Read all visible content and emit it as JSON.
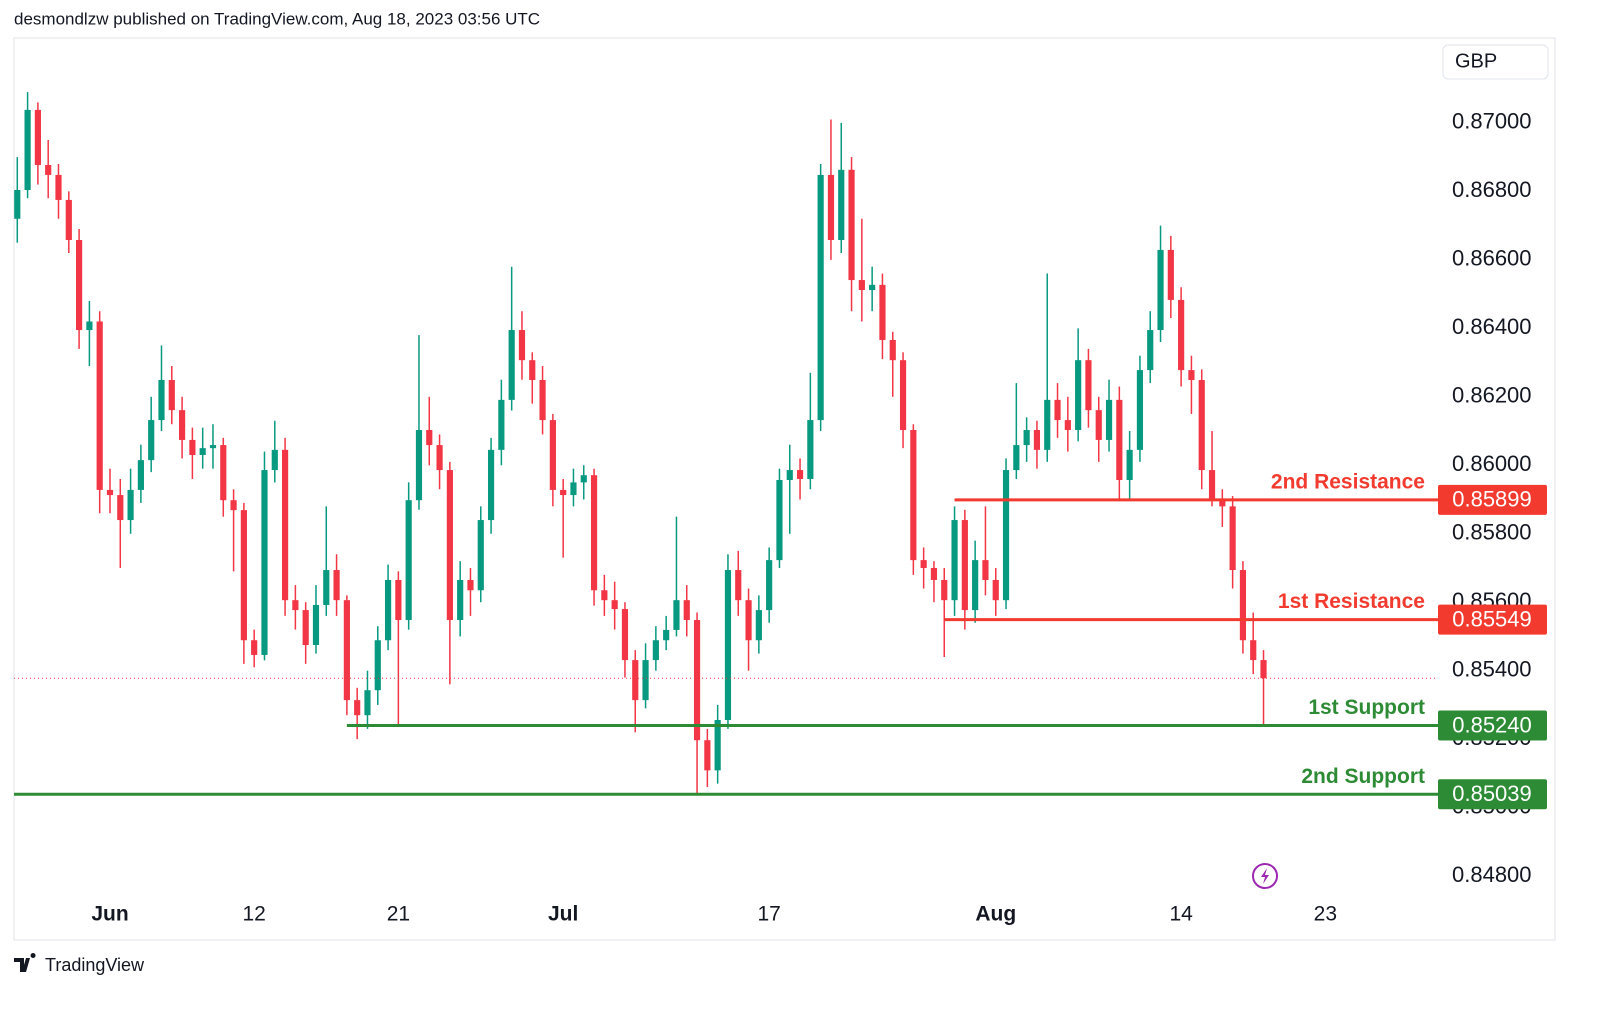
{
  "header": "desmondlzw published on TradingView.com, Aug 18, 2023 03:56 UTC",
  "footer": "TradingView",
  "chart_data": {
    "type": "candlestick",
    "currency": "GBP",
    "up_color": "#089981",
    "down_color": "#f23645",
    "grid": false,
    "xlim": [
      -4.66,
      64.47
    ],
    "ylim": [
      0.84739,
      0.87248
    ],
    "xticks": [
      {
        "value": 0,
        "label": "Jun"
      },
      {
        "value": 7,
        "label": "12"
      },
      {
        "value": 14,
        "label": "21"
      },
      {
        "value": 22,
        "label": "Jul"
      },
      {
        "value": 32,
        "label": "17"
      },
      {
        "value": 43,
        "label": "Aug"
      },
      {
        "value": 52,
        "label": "14"
      },
      {
        "value": 59,
        "label": "23"
      }
    ],
    "yticks": [
      {
        "value": 0.848,
        "label": "0.84800"
      },
      {
        "value": 0.85,
        "label": "0.85000"
      },
      {
        "value": 0.852,
        "label": "0.85200"
      },
      {
        "value": 0.854,
        "label": "0.85400"
      },
      {
        "value": 0.856,
        "label": "0.85600"
      },
      {
        "value": 0.858,
        "label": "0.85800"
      },
      {
        "value": 0.86,
        "label": "0.86000"
      },
      {
        "value": 0.862,
        "label": "0.86200"
      },
      {
        "value": 0.864,
        "label": "0.86400"
      },
      {
        "value": 0.866,
        "label": "0.86600"
      },
      {
        "value": 0.868,
        "label": "0.86800"
      },
      {
        "value": 0.87,
        "label": "0.87000"
      }
    ],
    "x": [
      -4.5,
      -4,
      -3.5,
      -3,
      -2.5,
      -2,
      -1.5,
      -1,
      -0.5,
      0,
      0.5,
      1,
      1.5,
      2,
      2.5,
      3,
      3.5,
      4,
      4.5,
      5,
      5.5,
      6,
      6.5,
      7,
      7.5,
      8,
      8.5,
      9,
      9.5,
      10,
      10.5,
      11,
      11.5,
      12,
      12.5,
      13,
      13.5,
      14,
      14.5,
      15,
      15.5,
      16,
      16.5,
      17,
      17.5,
      18,
      18.5,
      19,
      19.5,
      20,
      20.5,
      21,
      21.5,
      22,
      22.5,
      23,
      23.5,
      24,
      24.5,
      25,
      25.5,
      26,
      26.5,
      27,
      27.5,
      28,
      28.5,
      29,
      29.5,
      30,
      30.5,
      31,
      31.5,
      32,
      32.5,
      33,
      33.5,
      34,
      34.5,
      35,
      35.5,
      36,
      36.5,
      37,
      37.5,
      38,
      38.5,
      39,
      39.5,
      40,
      40.5,
      41,
      41.5,
      42,
      42.5,
      43,
      43.5,
      44,
      44.5,
      45,
      45.5,
      46,
      46.5,
      47,
      47.5,
      48,
      48.5,
      49,
      49.5,
      50,
      50.5,
      51,
      51.5,
      52,
      52.5,
      53,
      53.5,
      54,
      54.5,
      55,
      55.5,
      56
    ],
    "ohlc": [
      [
        0.8672,
        0.869,
        0.8665,
        0.86804
      ],
      [
        0.86804,
        0.8709,
        0.8678,
        0.87038
      ],
      [
        0.87038,
        0.8706,
        0.8682,
        0.86877
      ],
      [
        0.86877,
        0.8695,
        0.8678,
        0.86848
      ],
      [
        0.86848,
        0.8688,
        0.8672,
        0.86775
      ],
      [
        0.86775,
        0.868,
        0.8662,
        0.86658
      ],
      [
        0.86658,
        0.8669,
        0.8634,
        0.86395
      ],
      [
        0.86395,
        0.8648,
        0.8629,
        0.8642
      ],
      [
        0.8642,
        0.8645,
        0.8586,
        0.85928
      ],
      [
        0.85928,
        0.8599,
        0.8586,
        0.85913
      ],
      [
        0.85913,
        0.8596,
        0.857,
        0.8584
      ],
      [
        0.8584,
        0.8599,
        0.858,
        0.85928
      ],
      [
        0.85928,
        0.8606,
        0.8589,
        0.86015
      ],
      [
        0.86015,
        0.862,
        0.8598,
        0.86132
      ],
      [
        0.86132,
        0.8635,
        0.861,
        0.86249
      ],
      [
        0.86249,
        0.8629,
        0.8612,
        0.86161
      ],
      [
        0.86161,
        0.862,
        0.8602,
        0.86074
      ],
      [
        0.86074,
        0.8611,
        0.8596,
        0.8603
      ],
      [
        0.8603,
        0.8611,
        0.8599,
        0.8605
      ],
      [
        0.8605,
        0.8612,
        0.8599,
        0.86059
      ],
      [
        0.86059,
        0.8608,
        0.8585,
        0.85898
      ],
      [
        0.85898,
        0.8593,
        0.8569,
        0.85869
      ],
      [
        0.85869,
        0.8589,
        0.8542,
        0.85489
      ],
      [
        0.85489,
        0.8552,
        0.8541,
        0.85446
      ],
      [
        0.85446,
        0.8604,
        0.8543,
        0.85986
      ],
      [
        0.85986,
        0.8613,
        0.8595,
        0.86045
      ],
      [
        0.86045,
        0.8608,
        0.8556,
        0.85606
      ],
      [
        0.85606,
        0.8565,
        0.8552,
        0.85577
      ],
      [
        0.85577,
        0.856,
        0.8542,
        0.85475
      ],
      [
        0.85475,
        0.8565,
        0.8545,
        0.85592
      ],
      [
        0.85592,
        0.8588,
        0.8556,
        0.85694
      ],
      [
        0.85694,
        0.8574,
        0.8556,
        0.85606
      ],
      [
        0.85606,
        0.8562,
        0.8527,
        0.85314
      ],
      [
        0.85314,
        0.8535,
        0.852,
        0.8527
      ],
      [
        0.8527,
        0.854,
        0.8523,
        0.85343
      ],
      [
        0.85343,
        0.8553,
        0.853,
        0.85489
      ],
      [
        0.85489,
        0.8571,
        0.8546,
        0.85665
      ],
      [
        0.85665,
        0.8569,
        0.8524,
        0.85548
      ],
      [
        0.85548,
        0.8595,
        0.8552,
        0.85898
      ],
      [
        0.85898,
        0.8638,
        0.8587,
        0.86103
      ],
      [
        0.86103,
        0.862,
        0.86,
        0.86059
      ],
      [
        0.86059,
        0.8609,
        0.8593,
        0.85986
      ],
      [
        0.85986,
        0.8601,
        0.8536,
        0.85548
      ],
      [
        0.85548,
        0.8572,
        0.855,
        0.85665
      ],
      [
        0.85665,
        0.857,
        0.8556,
        0.85635
      ],
      [
        0.85635,
        0.8588,
        0.856,
        0.8584
      ],
      [
        0.8584,
        0.8608,
        0.858,
        0.86045
      ],
      [
        0.86045,
        0.8625,
        0.86,
        0.86191
      ],
      [
        0.86191,
        0.8658,
        0.8616,
        0.86395
      ],
      [
        0.86395,
        0.8645,
        0.8625,
        0.86307
      ],
      [
        0.86307,
        0.8633,
        0.8618,
        0.86249
      ],
      [
        0.86249,
        0.8629,
        0.8609,
        0.86132
      ],
      [
        0.86132,
        0.8615,
        0.8588,
        0.85928
      ],
      [
        0.85928,
        0.8596,
        0.8573,
        0.85913
      ],
      [
        0.85913,
        0.8599,
        0.8588,
        0.8595
      ],
      [
        0.8595,
        0.86,
        0.859,
        0.85971
      ],
      [
        0.85971,
        0.8599,
        0.8559,
        0.85635
      ],
      [
        0.85635,
        0.8568,
        0.8556,
        0.85606
      ],
      [
        0.85606,
        0.8566,
        0.8552,
        0.8558
      ],
      [
        0.8558,
        0.856,
        0.8538,
        0.85431
      ],
      [
        0.85431,
        0.8546,
        0.8522,
        0.85314
      ],
      [
        0.85314,
        0.8548,
        0.8529,
        0.85431
      ],
      [
        0.85431,
        0.8553,
        0.854,
        0.85489
      ],
      [
        0.85489,
        0.8556,
        0.8546,
        0.85519
      ],
      [
        0.85519,
        0.8585,
        0.855,
        0.85606
      ],
      [
        0.85606,
        0.8565,
        0.855,
        0.85548
      ],
      [
        0.85548,
        0.8557,
        0.85039,
        0.85197
      ],
      [
        0.85197,
        0.8523,
        0.8506,
        0.85109
      ],
      [
        0.85109,
        0.853,
        0.8507,
        0.85256
      ],
      [
        0.85256,
        0.8574,
        0.8523,
        0.85694
      ],
      [
        0.85694,
        0.8575,
        0.8556,
        0.85606
      ],
      [
        0.85606,
        0.8564,
        0.854,
        0.85489
      ],
      [
        0.85489,
        0.8562,
        0.8545,
        0.85577
      ],
      [
        0.85577,
        0.8576,
        0.8554,
        0.85723
      ],
      [
        0.85723,
        0.8599,
        0.857,
        0.85957
      ],
      [
        0.85957,
        0.8606,
        0.858,
        0.85986
      ],
      [
        0.85986,
        0.8602,
        0.859,
        0.8596
      ],
      [
        0.8596,
        0.8627,
        0.8593,
        0.86132
      ],
      [
        0.86132,
        0.8688,
        0.861,
        0.86848
      ],
      [
        0.86848,
        0.8701,
        0.866,
        0.86658
      ],
      [
        0.86658,
        0.87,
        0.8662,
        0.86863
      ],
      [
        0.86863,
        0.869,
        0.8645,
        0.86541
      ],
      [
        0.86541,
        0.8672,
        0.8642,
        0.86512
      ],
      [
        0.86512,
        0.8658,
        0.8645,
        0.86527
      ],
      [
        0.86527,
        0.8656,
        0.8631,
        0.86366
      ],
      [
        0.86366,
        0.8639,
        0.862,
        0.86307
      ],
      [
        0.86307,
        0.8633,
        0.8605,
        0.86103
      ],
      [
        0.86103,
        0.8612,
        0.8568,
        0.85723
      ],
      [
        0.85723,
        0.8576,
        0.8564,
        0.857
      ],
      [
        0.857,
        0.8572,
        0.856,
        0.85665
      ],
      [
        0.85665,
        0.857,
        0.8544,
        0.85606
      ],
      [
        0.85606,
        0.8588,
        0.8556,
        0.8584
      ],
      [
        0.8584,
        0.8587,
        0.8552,
        0.85577
      ],
      [
        0.85577,
        0.8578,
        0.8554,
        0.85723
      ],
      [
        0.85723,
        0.8588,
        0.8562,
        0.85665
      ],
      [
        0.85665,
        0.857,
        0.8556,
        0.85606
      ],
      [
        0.85606,
        0.8602,
        0.8558,
        0.85986
      ],
      [
        0.85986,
        0.8624,
        0.8596,
        0.86059
      ],
      [
        0.86059,
        0.8614,
        0.8601,
        0.86103
      ],
      [
        0.86103,
        0.8613,
        0.8599,
        0.86045
      ],
      [
        0.86045,
        0.8656,
        0.8601,
        0.86191
      ],
      [
        0.86191,
        0.8624,
        0.8608,
        0.86132
      ],
      [
        0.86132,
        0.862,
        0.8604,
        0.86103
      ],
      [
        0.86103,
        0.864,
        0.8607,
        0.86307
      ],
      [
        0.86307,
        0.8634,
        0.8611,
        0.86161
      ],
      [
        0.86161,
        0.862,
        0.8601,
        0.86074
      ],
      [
        0.86074,
        0.8625,
        0.8604,
        0.86191
      ],
      [
        0.86191,
        0.8623,
        0.859,
        0.85957
      ],
      [
        0.85957,
        0.861,
        0.859,
        0.86045
      ],
      [
        0.86045,
        0.8632,
        0.8601,
        0.86278
      ],
      [
        0.86278,
        0.8645,
        0.8624,
        0.86395
      ],
      [
        0.86395,
        0.867,
        0.8636,
        0.86629
      ],
      [
        0.86629,
        0.8667,
        0.8643,
        0.86483
      ],
      [
        0.86483,
        0.8652,
        0.8623,
        0.86278
      ],
      [
        0.86278,
        0.8632,
        0.8615,
        0.86249
      ],
      [
        0.86249,
        0.8628,
        0.8593,
        0.85986
      ],
      [
        0.85986,
        0.861,
        0.8588,
        0.85898
      ],
      [
        0.85898,
        0.8593,
        0.8582,
        0.8588
      ],
      [
        0.8588,
        0.8591,
        0.8564,
        0.85694
      ],
      [
        0.85694,
        0.8572,
        0.8545,
        0.85489
      ],
      [
        0.85489,
        0.8557,
        0.8539,
        0.85431
      ],
      [
        0.85431,
        0.8546,
        0.8524,
        0.85378
      ]
    ],
    "levels": [
      {
        "name": "2nd Resistance",
        "value": 0.85899,
        "label": "0.85899",
        "color": "#f23a2e",
        "from": 41
      },
      {
        "name": "1st Resistance",
        "value": 0.85549,
        "label": "0.85549",
        "color": "#f23a2e",
        "from": 40.5
      },
      {
        "name": "1st Support",
        "value": 0.8524,
        "label": "0.85240",
        "color": "#2e8b35",
        "from": 11.5
      },
      {
        "name": "2nd Support",
        "value": 0.85039,
        "label": "0.85039",
        "color": "#2e8b35"
      }
    ]
  }
}
